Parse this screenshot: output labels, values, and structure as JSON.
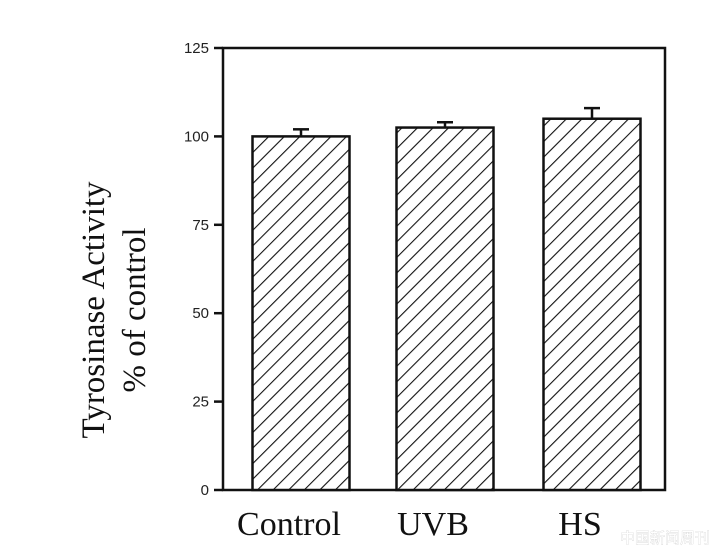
{
  "chart_data": {
    "type": "bar",
    "categories": [
      "Control",
      "UVB",
      "HS"
    ],
    "values": [
      100,
      102.5,
      105
    ],
    "errors": [
      2,
      1.5,
      3
    ],
    "ylabel_line1": "Tyrosinase Activity",
    "ylabel_line2": "% of control",
    "ylim": [
      0,
      125
    ],
    "yticks": [
      "0",
      "25",
      "50",
      "75",
      "100",
      "125"
    ],
    "grid": false,
    "bar_pattern": "diagonal-hatch",
    "colors": {
      "bar_stroke": "#111111",
      "axis": "#111111",
      "background": "#ffffff"
    }
  },
  "watermark": "中国新闻周刊"
}
